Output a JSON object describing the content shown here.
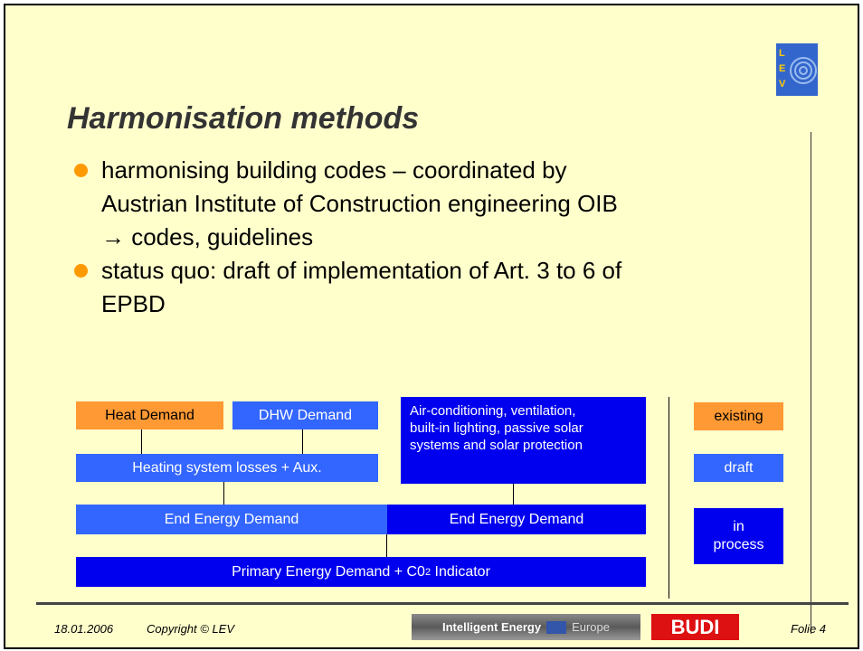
{
  "slide": {
    "title": "Harmonisation methods",
    "bullets": [
      {
        "lines": [
          "harmonising building codes – coordinated by",
          "Austrian Institute of Construction engineering OIB",
          "→ codes, guidelines"
        ]
      },
      {
        "lines": [
          "status quo: draft of implementation of Art. 3 to 6 of",
          "EPBD"
        ]
      }
    ],
    "diagram": {
      "heat_demand": "Heat Demand",
      "dhw_demand": "DHW Demand",
      "air_conditioning": [
        "Air-conditioning, ventilation,",
        "built-in lighting, passive solar",
        "systems and solar protection"
      ],
      "heating_losses": "Heating system losses + Aux.",
      "end_energy_left": "End Energy Demand",
      "end_energy_right": "End Energy Demand",
      "primary": {
        "text": "Primary Energy Demand + C0",
        "sub": "2",
        "after": " Indicator"
      }
    },
    "legend": {
      "existing": "existing",
      "draft": "draft",
      "in_process": [
        "in",
        "process"
      ]
    },
    "footer": {
      "date": "18.01.2006",
      "copyright": "Copyright © LEV",
      "logo_ie": [
        "Intelligent Energy",
        "Europe"
      ],
      "logo_budi": "BUDI",
      "page": "Folie 4"
    },
    "logo": "LEV"
  }
}
